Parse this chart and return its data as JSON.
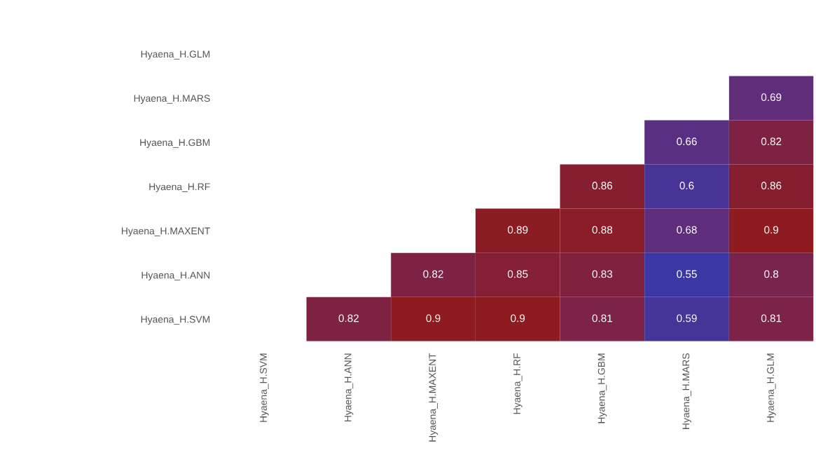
{
  "chart_data": {
    "type": "heatmap",
    "categories": [
      "Hyaena_H.SVM",
      "Hyaena_H.ANN",
      "Hyaena_H.MAXENT",
      "Hyaena_H.RF",
      "Hyaena_H.GBM",
      "Hyaena_H.MARS",
      "Hyaena_H.GLM"
    ],
    "y_categories": [
      "Hyaena_H.GLM",
      "Hyaena_H.MARS",
      "Hyaena_H.GBM",
      "Hyaena_H.RF",
      "Hyaena_H.MAXENT",
      "Hyaena_H.ANN",
      "Hyaena_H.SVM"
    ],
    "cells": [
      [
        null,
        null,
        null,
        null,
        null,
        null,
        null
      ],
      [
        null,
        null,
        null,
        null,
        null,
        null,
        0.69
      ],
      [
        null,
        null,
        null,
        null,
        null,
        0.66,
        0.82
      ],
      [
        null,
        null,
        null,
        null,
        0.86,
        0.6,
        0.86
      ],
      [
        null,
        null,
        null,
        0.89,
        0.88,
        0.68,
        0.9
      ],
      [
        null,
        null,
        0.82,
        0.85,
        0.83,
        0.55,
        0.8
      ],
      [
        null,
        0.82,
        0.9,
        0.9,
        0.81,
        0.59,
        0.81
      ]
    ],
    "data_labels": true
  }
}
